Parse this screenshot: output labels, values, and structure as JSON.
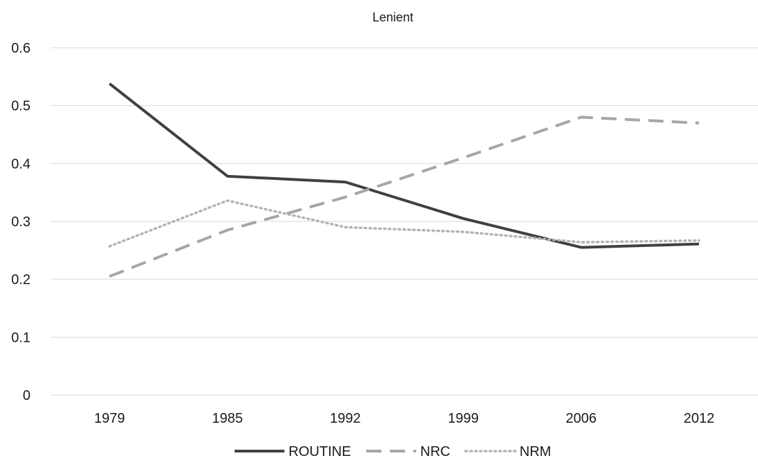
{
  "chart_data": {
    "type": "line",
    "title": "Lenient",
    "xlabel": "",
    "ylabel": "",
    "categories": [
      "1979",
      "1985",
      "1992",
      "1999",
      "2006",
      "2012"
    ],
    "ylim": [
      0,
      0.6
    ],
    "yticks": [
      "0",
      "0.1",
      "0.2",
      "0.3",
      "0.4",
      "0.5",
      "0.6"
    ],
    "grid": true,
    "legend_position": "bottom",
    "series": [
      {
        "name": "ROUTINE",
        "values": [
          0.538,
          0.378,
          0.368,
          0.305,
          0.255,
          0.261
        ],
        "color": "#404040",
        "style": "solid"
      },
      {
        "name": "NRC",
        "values": [
          0.205,
          0.285,
          0.342,
          0.41,
          0.48,
          0.47
        ],
        "color": "#a6a6a6",
        "style": "dashed"
      },
      {
        "name": "NRM",
        "values": [
          0.257,
          0.336,
          0.29,
          0.282,
          0.264,
          0.267
        ],
        "color": "#b3b3b3",
        "style": "dotted"
      }
    ]
  }
}
